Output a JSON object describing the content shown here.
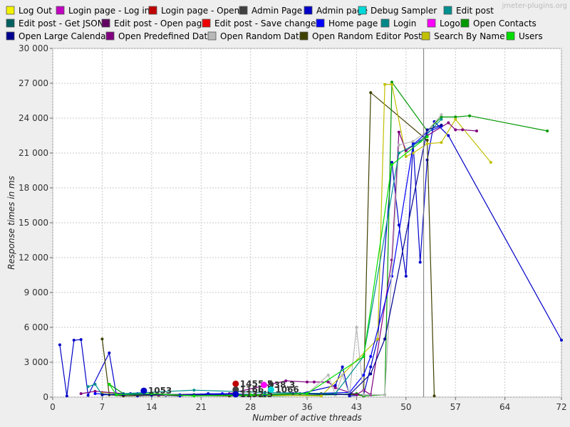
{
  "watermark": "jmeter-plugins.org",
  "chart_data": {
    "type": "line",
    "title": "",
    "xlabel": "Number of active threads",
    "ylabel": "Response times in ms",
    "xlim": [
      0,
      72
    ],
    "ylim": [
      0,
      30000
    ],
    "xticks": [
      0,
      7,
      14,
      21,
      28,
      36,
      43,
      50,
      57,
      64,
      72
    ],
    "yticks": [
      0,
      3000,
      6000,
      9000,
      12000,
      15000,
      18000,
      21000,
      24000,
      27000,
      30000
    ],
    "ytick_labels": [
      "0",
      "3 000",
      "6 000",
      "9 000",
      "12 000",
      "15 000",
      "18 000",
      "21 000",
      "24 000",
      "27 000",
      "30 000"
    ],
    "grid": true,
    "legend_position": "top",
    "vline_x": 52.5,
    "legend": [
      {
        "name": "Log Out",
        "color": "#f2f200"
      },
      {
        "name": "Login page - Log in",
        "color": "#c000c0"
      },
      {
        "name": "Login page - Open",
        "color": "#c00000"
      },
      {
        "name": "Admin Page",
        "color": "#404040"
      },
      {
        "name": "Admin page",
        "color": "#0000c8"
      },
      {
        "name": "Debug Sampler",
        "color": "#00d8d8"
      },
      {
        "name": "Edit post",
        "color": "#009090"
      },
      {
        "name": "Edit post - Get JSON",
        "color": "#006060"
      },
      {
        "name": "Edit post - Open page",
        "color": "#600060"
      },
      {
        "name": "Edit post - Save changes",
        "color": "#ee0000"
      },
      {
        "name": "Home page",
        "color": "#0000ff"
      },
      {
        "name": "Login",
        "color": "#008888"
      },
      {
        "name": "Logout",
        "color": "#ff00ff"
      },
      {
        "name": "Open Contacts",
        "color": "#009900"
      },
      {
        "name": "Open Large Calendar",
        "color": "#000090"
      },
      {
        "name": "Open Predefined Date",
        "color": "#800080"
      },
      {
        "name": "Open Random Date",
        "color": "#b8b8b8"
      },
      {
        "name": "Open Random Editor Post",
        "color": "#404000"
      },
      {
        "name": "Search By Name",
        "color": "#c0c000"
      },
      {
        "name": "Users",
        "color": "#00dd00"
      }
    ],
    "series": [
      {
        "color": "#0000c8",
        "points": [
          [
            1,
            4500
          ],
          [
            2,
            100
          ],
          [
            3,
            4900
          ],
          [
            4,
            4950
          ],
          [
            5,
            150
          ],
          [
            8,
            3800
          ],
          [
            9,
            200
          ],
          [
            10,
            150
          ],
          [
            11,
            300
          ],
          [
            12,
            100
          ],
          [
            14,
            150
          ],
          [
            16,
            150
          ],
          [
            18,
            100
          ],
          [
            20,
            200
          ],
          [
            22,
            300
          ],
          [
            25,
            200
          ],
          [
            30,
            200
          ],
          [
            35,
            300
          ],
          [
            40,
            1000
          ],
          [
            41,
            2600
          ],
          [
            42,
            100
          ],
          [
            44,
            200
          ],
          [
            45,
            2600
          ],
          [
            46,
            5000
          ],
          [
            48,
            20200
          ],
          [
            49,
            14800
          ],
          [
            50,
            10400
          ],
          [
            51,
            21900
          ],
          [
            52,
            11600
          ],
          [
            53,
            20400
          ],
          [
            54,
            23700
          ],
          [
            56,
            22500
          ],
          [
            72,
            4900
          ]
        ]
      },
      {
        "color": "#404000",
        "points": [
          [
            7,
            5000
          ],
          [
            8,
            200
          ],
          [
            10,
            100
          ],
          [
            15,
            150
          ],
          [
            25,
            100
          ],
          [
            38,
            300
          ],
          [
            43,
            200
          ],
          [
            44,
            100
          ],
          [
            45,
            26200
          ],
          [
            53,
            22100
          ],
          [
            54,
            100
          ]
        ]
      },
      {
        "color": "#009900",
        "points": [
          [
            8,
            1100
          ],
          [
            10,
            300
          ],
          [
            20,
            200
          ],
          [
            30,
            100
          ],
          [
            40,
            200
          ],
          [
            43,
            300
          ],
          [
            44,
            100
          ],
          [
            47,
            200
          ],
          [
            48,
            27100
          ],
          [
            53,
            22900
          ],
          [
            55,
            24100
          ],
          [
            57,
            24100
          ],
          [
            59,
            24200
          ],
          [
            70,
            22900
          ]
        ]
      },
      {
        "color": "#c0c000",
        "points": [
          [
            7,
            400
          ],
          [
            10,
            300
          ],
          [
            16,
            200
          ],
          [
            28,
            200
          ],
          [
            38,
            100
          ],
          [
            46,
            5000
          ],
          [
            47,
            26900
          ],
          [
            48,
            26900
          ],
          [
            50,
            20700
          ],
          [
            51,
            21000
          ],
          [
            53,
            21800
          ],
          [
            55,
            21900
          ],
          [
            57,
            23900
          ],
          [
            62,
            20200
          ]
        ]
      },
      {
        "color": "#800080",
        "points": [
          [
            4,
            300
          ],
          [
            6,
            500
          ],
          [
            10,
            300
          ],
          [
            15,
            200
          ],
          [
            25,
            300
          ],
          [
            33,
            1400
          ],
          [
            36,
            1300
          ],
          [
            37,
            1300
          ],
          [
            39,
            1300
          ],
          [
            40,
            800
          ],
          [
            43,
            200
          ],
          [
            44,
            600
          ],
          [
            45,
            200
          ],
          [
            48,
            11800
          ],
          [
            49,
            22800
          ],
          [
            50,
            21200
          ],
          [
            53,
            22500
          ],
          [
            56,
            23600
          ],
          [
            57,
            23000
          ],
          [
            58,
            23000
          ],
          [
            60,
            22900
          ]
        ]
      },
      {
        "color": "#0000ff",
        "points": [
          [
            6,
            300
          ],
          [
            9,
            200
          ],
          [
            12,
            300
          ],
          [
            18,
            200
          ],
          [
            24,
            300
          ],
          [
            30,
            200
          ],
          [
            36,
            300
          ],
          [
            42,
            400
          ],
          [
            44,
            1900
          ],
          [
            45,
            3500
          ],
          [
            48,
            10400
          ],
          [
            51,
            21700
          ],
          [
            53,
            22800
          ],
          [
            55,
            23300
          ]
        ]
      },
      {
        "color": "#b8b8b8",
        "points": [
          [
            9,
            200
          ],
          [
            16,
            200
          ],
          [
            26,
            200
          ],
          [
            36,
            300
          ],
          [
            39,
            1900
          ],
          [
            40,
            200
          ],
          [
            41,
            1900
          ],
          [
            42,
            200
          ],
          [
            43,
            6000
          ],
          [
            44,
            200
          ],
          [
            47,
            200
          ],
          [
            49,
            21700
          ],
          [
            51,
            22000
          ],
          [
            53,
            22900
          ],
          [
            55,
            24300
          ]
        ]
      },
      {
        "color": "#009090",
        "points": [
          [
            5,
            900
          ],
          [
            6,
            1100
          ],
          [
            7,
            200
          ],
          [
            10,
            300
          ],
          [
            20,
            600
          ],
          [
            30,
            400
          ],
          [
            40,
            300
          ],
          [
            44,
            3500
          ],
          [
            49,
            21000
          ],
          [
            52,
            22000
          ],
          [
            55,
            23900
          ]
        ]
      },
      {
        "color": "#000090",
        "points": [
          [
            7,
            200
          ],
          [
            10,
            200
          ],
          [
            14,
            200
          ],
          [
            20,
            200
          ],
          [
            26,
            200
          ],
          [
            34,
            300
          ],
          [
            42,
            200
          ],
          [
            45,
            2000
          ],
          [
            47,
            5000
          ],
          [
            53,
            23000
          ],
          [
            55,
            23400
          ]
        ]
      },
      {
        "color": "#00dd00",
        "points": [
          [
            8,
            1100
          ],
          [
            9,
            200
          ],
          [
            14,
            300
          ],
          [
            20,
            100
          ],
          [
            28,
            200
          ],
          [
            36,
            300
          ],
          [
            44,
            3500
          ],
          [
            48,
            20000
          ],
          [
            53,
            22400
          ]
        ]
      }
    ],
    "data_labels": [
      {
        "x": 13.5,
        "y": 300,
        "text": "1053"
      },
      {
        "x": 26.5,
        "y": 900,
        "text": "1455.5"
      },
      {
        "x": 26.5,
        "y": 400,
        "text": "1166.5"
      },
      {
        "x": 26.5,
        "y": 0,
        "text": "1132.5"
      },
      {
        "x": 30.5,
        "y": 800,
        "text": "938.3"
      },
      {
        "x": 31.5,
        "y": 400,
        "text": "1066"
      }
    ]
  }
}
